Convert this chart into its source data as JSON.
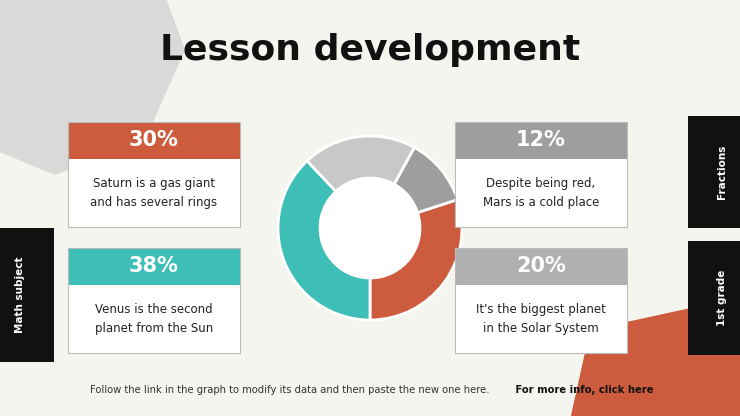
{
  "title": "Lesson development",
  "bg_color": "#f5f5f0",
  "pie_values": [
    30,
    12,
    20,
    38
  ],
  "pie_colors": [
    "#cc5c3d",
    "#9e9e9e",
    "#c8c8c8",
    "#3dbfb8"
  ],
  "cards": [
    {
      "pct": "30%",
      "header_color": "#cc5c3d",
      "text": "Saturn is a gas giant\nand has several rings"
    },
    {
      "pct": "12%",
      "header_color": "#9e9e9e",
      "text": "Despite being red,\nMars is a cold place"
    },
    {
      "pct": "38%",
      "header_color": "#3dbfb8",
      "text": "Venus is the second\nplanet from the Sun"
    },
    {
      "pct": "20%",
      "header_color": "#b0b0b0",
      "text": "It's the biggest planet\nin the Solar System"
    }
  ],
  "footer_normal": "Follow the link in the graph to modify its data and then paste the new one here.",
  "footer_bold": " For more info, click here",
  "side_label_left": "Math subject",
  "side_label_right_top": "Fractions",
  "side_label_right_bottom": "1st grade"
}
